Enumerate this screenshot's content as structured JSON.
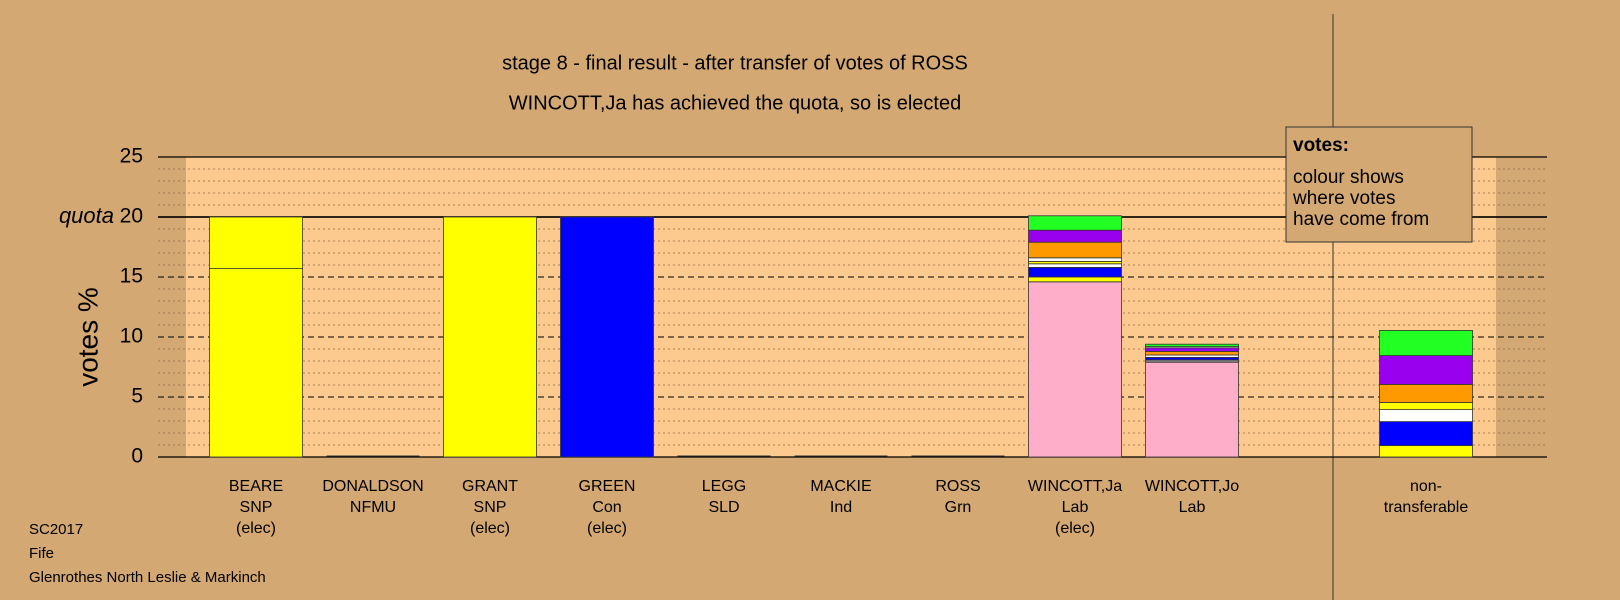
{
  "chart_data": {
    "type": "stacked-bar",
    "title": "stage 8 - final result - after transfer of votes of ROSS",
    "subtitle": "WINCOTT,Ja has achieved the quota, so is elected",
    "y_label": "votes %",
    "ylim": [
      0,
      25
    ],
    "yticks": [
      0,
      5,
      10,
      15,
      {
        "value": 20,
        "label": "20"
      },
      25
    ],
    "minor_yticks": [
      1,
      2,
      3,
      4,
      6,
      7,
      8,
      9,
      11,
      12,
      13,
      14,
      16,
      17,
      18,
      19,
      21,
      22,
      23,
      24
    ],
    "quota": 20,
    "quota_label": "quota",
    "grid": true,
    "bars": [
      {
        "label": [
          "BEARE",
          "SNP",
          "(elec)"
        ],
        "segments": [
          {
            "value": 15.7,
            "color": "#ffff00"
          },
          {
            "value": 4.3,
            "color": "#ffff00"
          }
        ]
      },
      {
        "label": [
          "DONALDSON",
          "NFMU"
        ],
        "segments": []
      },
      {
        "label": [
          "GRANT",
          "SNP",
          "(elec)"
        ],
        "segments": [
          {
            "value": 20,
            "color": "#ffff00"
          }
        ]
      },
      {
        "label": [
          "GREEN",
          "Con",
          "(elec)"
        ],
        "segments": [
          {
            "value": 20,
            "color": "#0000ff"
          }
        ]
      },
      {
        "label": [
          "LEGG",
          "SLD"
        ],
        "segments": []
      },
      {
        "label": [
          "MACKIE",
          "Ind"
        ],
        "segments": []
      },
      {
        "label": [
          "ROSS",
          "Grn"
        ],
        "segments": []
      },
      {
        "label": [
          "WINCOTT,Ja",
          "Lab",
          "(elec)"
        ],
        "segments": [
          {
            "value": 14.6,
            "color": "#ffaec9"
          },
          {
            "value": 0.4,
            "color": "#ffff00"
          },
          {
            "value": 0.8,
            "color": "#0000ff"
          },
          {
            "value": 0.3,
            "color": "#ffffff"
          },
          {
            "value": 0.2,
            "color": "#ffff00"
          },
          {
            "value": 0.3,
            "color": "#ffffff"
          },
          {
            "value": 1.3,
            "color": "#ff9900"
          },
          {
            "value": 1.0,
            "color": "#9900ee"
          },
          {
            "value": 1.2,
            "color": "#22ff22"
          }
        ]
      },
      {
        "label": [
          "WINCOTT,Jo",
          "Lab"
        ],
        "segments": [
          {
            "value": 7.9,
            "color": "#ffaec9"
          },
          {
            "value": 0.2,
            "color": "#888888"
          },
          {
            "value": 0.2,
            "color": "#0000ff"
          },
          {
            "value": 0.2,
            "color": "#ffffff"
          },
          {
            "value": 0.3,
            "color": "#ff9900"
          },
          {
            "value": 0.3,
            "color": "#9900ee"
          },
          {
            "value": 0.1,
            "color": "#ffffff"
          },
          {
            "value": 0.2,
            "color": "#22ff22"
          }
        ]
      }
    ],
    "non_transferable": {
      "label": [
        "non-",
        "transferable"
      ],
      "segments": [
        {
          "value": 0.95,
          "color": "#ffff00"
        },
        {
          "value": 2.0,
          "color": "#0000ff"
        },
        {
          "value": 1.0,
          "color": "#ffffff"
        },
        {
          "value": 0.6,
          "color": "#ffff00"
        },
        {
          "value": 1.5,
          "color": "#ff9900"
        },
        {
          "value": 2.4,
          "color": "#9900ee"
        },
        {
          "value": 2.1,
          "color": "#22ff22"
        }
      ]
    },
    "legend": {
      "title": "votes:",
      "lines": [
        "colour shows",
        "where votes",
        "have come from"
      ]
    },
    "footer": [
      "SC2017",
      "Fife",
      "Glenrothes North Leslie & Markinch"
    ]
  }
}
